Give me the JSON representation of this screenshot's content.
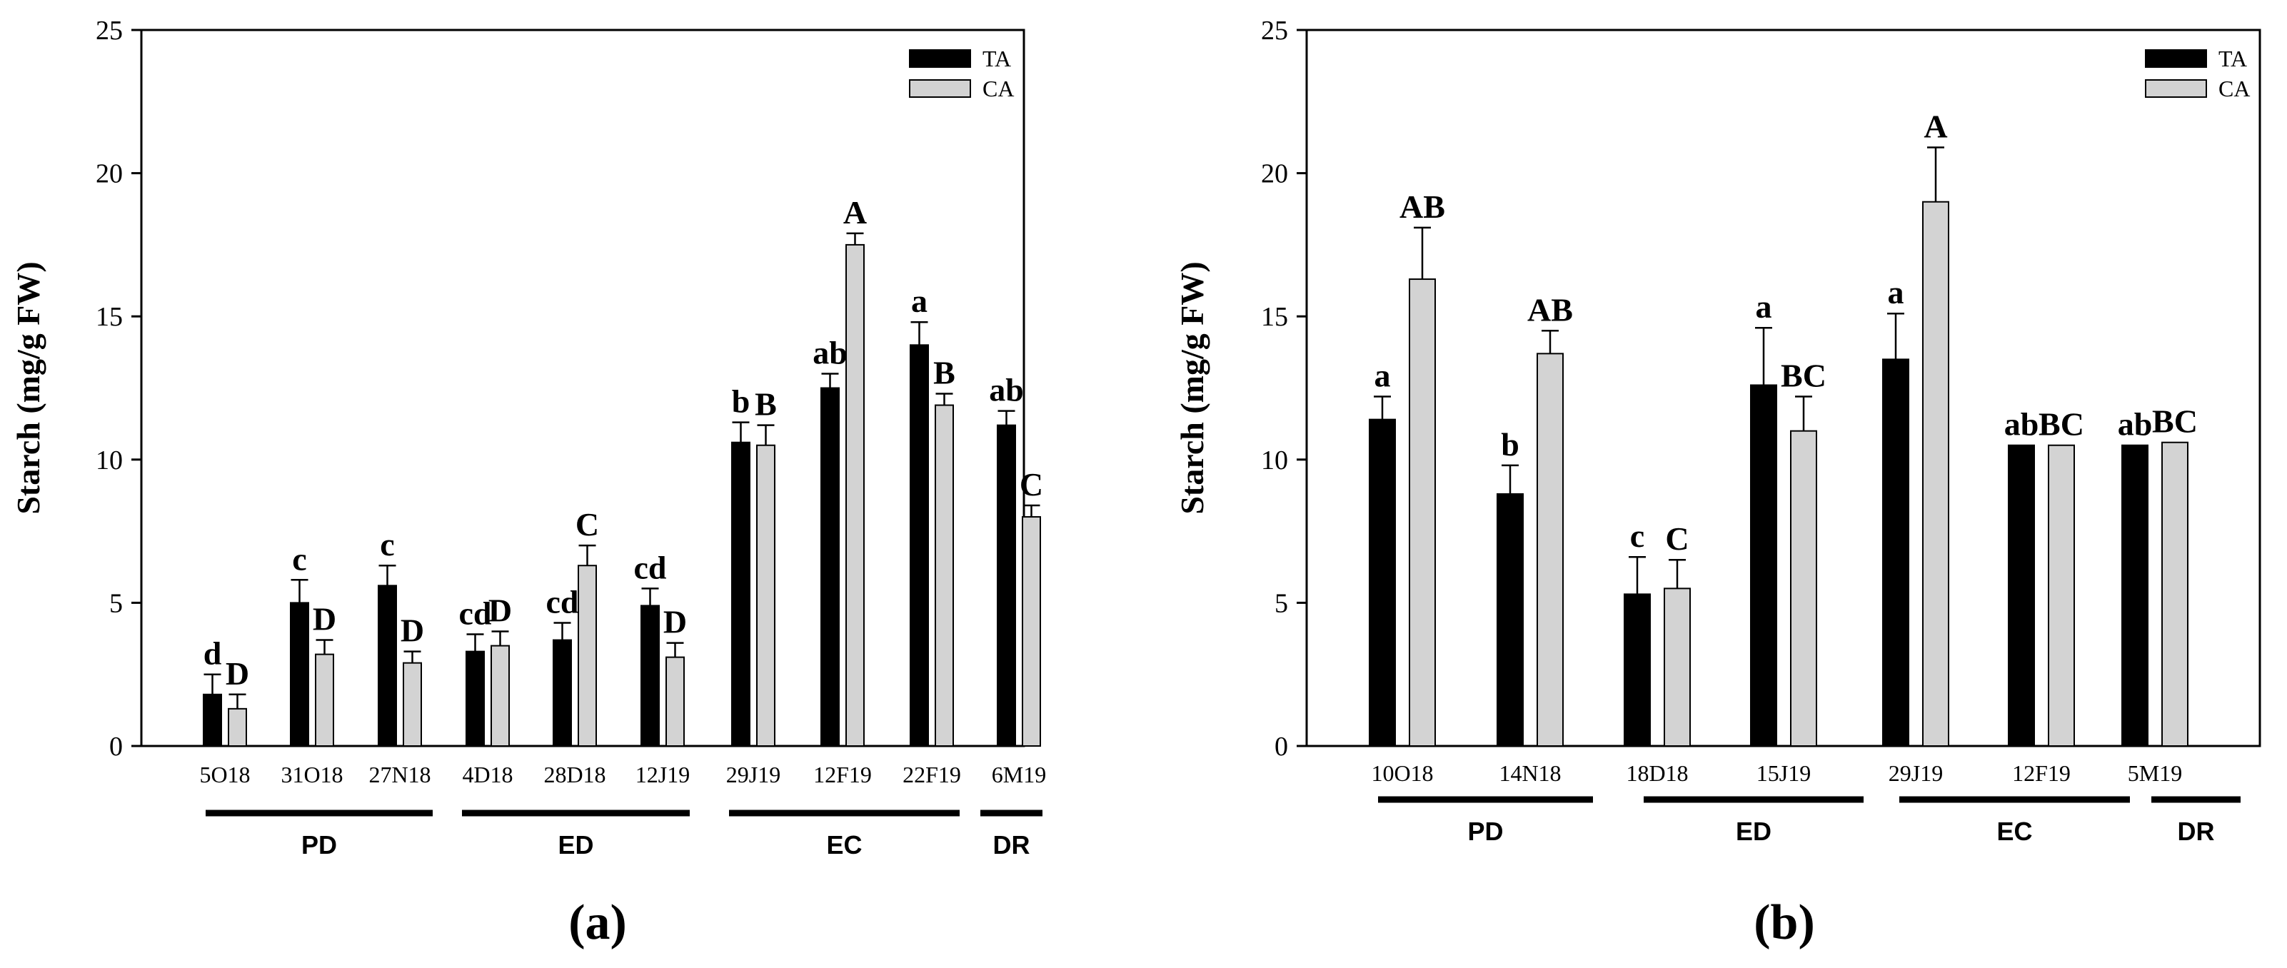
{
  "colors": {
    "ta": "#000000",
    "ca": "#d3d3d3",
    "axis": "#000000"
  },
  "chart_data": [
    {
      "type": "bar",
      "panel_label": "(a)",
      "ylabel": "Starch (mg/g FW)",
      "ylim": [
        0,
        25
      ],
      "yticks": [
        "0",
        "5",
        "10",
        "15",
        "20",
        "25"
      ],
      "legend": [
        "TA",
        "CA"
      ],
      "legend_position": "top-right",
      "categories": [
        "5O18",
        "31O18",
        "27N18",
        "4D18",
        "28D18",
        "12J19",
        "29J19",
        "12F19",
        "22F19",
        "6M19"
      ],
      "series": [
        {
          "name": "TA",
          "values": [
            1.8,
            5.0,
            5.6,
            3.3,
            3.7,
            4.9,
            10.6,
            12.5,
            14.0,
            11.2
          ],
          "errors": [
            0.7,
            0.8,
            0.7,
            0.6,
            0.6,
            0.6,
            0.7,
            0.5,
            0.8,
            0.5
          ],
          "labels": [
            "d",
            "c",
            "c",
            "cd",
            "cd",
            "cd",
            "b",
            "ab",
            "a",
            "ab"
          ]
        },
        {
          "name": "CA",
          "values": [
            1.3,
            3.2,
            2.9,
            3.5,
            6.3,
            3.1,
            10.5,
            17.5,
            11.9,
            8.0
          ],
          "errors": [
            0.5,
            0.5,
            0.4,
            0.5,
            0.7,
            0.5,
            0.7,
            0.4,
            0.4,
            0.4
          ],
          "labels": [
            "D",
            "D",
            "D",
            "D",
            "C",
            "D",
            "B",
            "A",
            "B",
            "C"
          ]
        }
      ],
      "groups": [
        {
          "name": "PD",
          "from": 0,
          "to": 2
        },
        {
          "name": "ED",
          "from": 3,
          "to": 5
        },
        {
          "name": "EC",
          "from": 6,
          "to": 8
        },
        {
          "name": "DR",
          "from": 9,
          "to": 9
        }
      ]
    },
    {
      "type": "bar",
      "panel_label": "(b)",
      "ylabel": "Starch (mg/g FW)",
      "ylim": [
        0,
        25
      ],
      "yticks": [
        "0",
        "5",
        "10",
        "15",
        "20",
        "25"
      ],
      "legend": [
        "TA",
        "CA"
      ],
      "legend_position": "top-right",
      "categories": [
        "10O18",
        "14N18",
        "18D18",
        "15J19",
        "29J19",
        "12F19",
        "5M19"
      ],
      "series": [
        {
          "name": "TA",
          "values": [
            11.4,
            8.8,
            5.3,
            12.6,
            13.5,
            10.5,
            10.5
          ],
          "errors": [
            0.8,
            1.0,
            1.3,
            2.0,
            1.6,
            0.0,
            0.0
          ],
          "labels": [
            "a",
            "b",
            "c",
            "a",
            "a",
            "ab",
            "ab"
          ]
        },
        {
          "name": "CA",
          "values": [
            16.3,
            13.7,
            5.5,
            11.0,
            19.0,
            10.5,
            10.6
          ],
          "errors": [
            1.8,
            0.8,
            1.0,
            1.2,
            1.9,
            0.0,
            0.0
          ],
          "labels": [
            "AB",
            "AB",
            "C",
            "BC",
            "A",
            "BC",
            "BC"
          ]
        }
      ],
      "groups": [
        {
          "name": "PD",
          "from": 0,
          "to": 1
        },
        {
          "name": "ED",
          "from": 2,
          "to": 3
        },
        {
          "name": "EC",
          "from": 4,
          "to": 5
        },
        {
          "name": "DR",
          "from": 6,
          "to": 6
        }
      ]
    }
  ]
}
